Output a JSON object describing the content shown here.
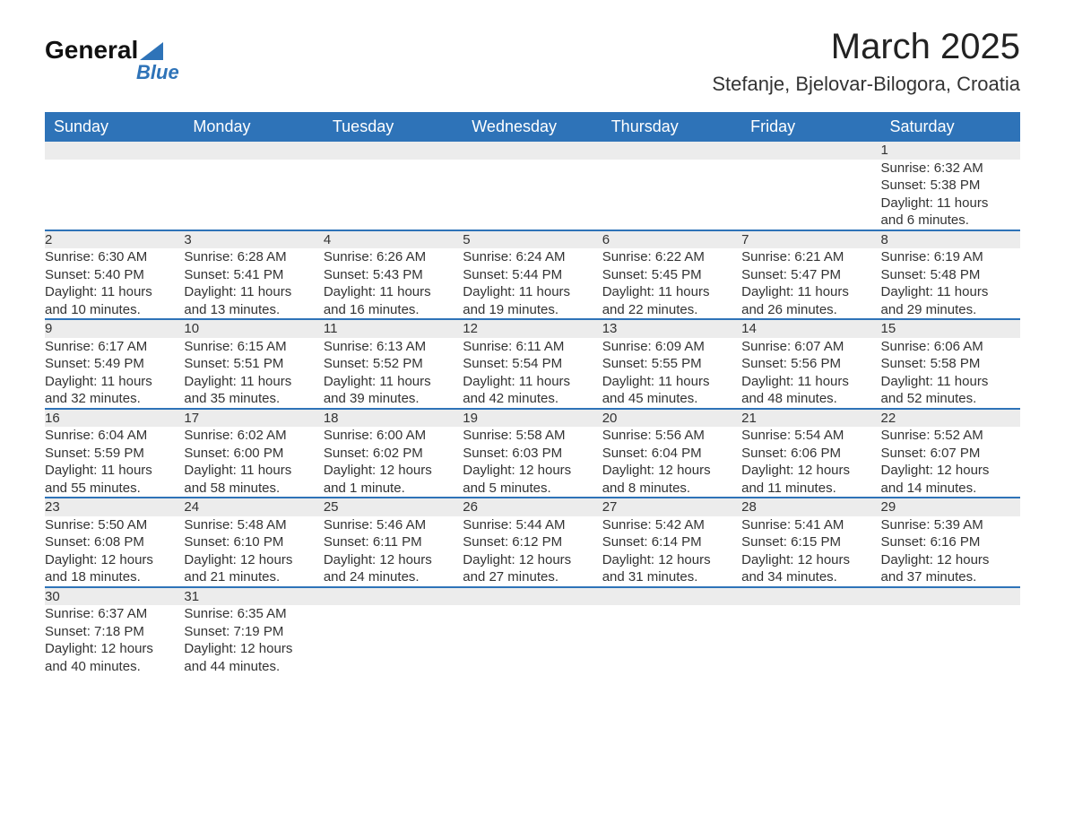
{
  "logo": {
    "word1": "General",
    "word2": "Blue"
  },
  "title": "March 2025",
  "subtitle": "Stefanje, Bjelovar-Bilogora, Croatia",
  "colors": {
    "header_bg": "#2e73b8",
    "header_fg": "#ffffff",
    "daynum_bg": "#ececec",
    "row_divider": "#2e73b8",
    "text": "#333333",
    "background": "#ffffff"
  },
  "fonts": {
    "title_size_pt": 30,
    "subtitle_size_pt": 17,
    "header_size_pt": 14,
    "cell_size_pt": 11
  },
  "headers": [
    "Sunday",
    "Monday",
    "Tuesday",
    "Wednesday",
    "Thursday",
    "Friday",
    "Saturday"
  ],
  "weeks": [
    [
      null,
      null,
      null,
      null,
      null,
      null,
      {
        "n": "1",
        "sr": "Sunrise: 6:32 AM",
        "ss": "Sunset: 5:38 PM",
        "d1": "Daylight: 11 hours",
        "d2": "and 6 minutes."
      }
    ],
    [
      {
        "n": "2",
        "sr": "Sunrise: 6:30 AM",
        "ss": "Sunset: 5:40 PM",
        "d1": "Daylight: 11 hours",
        "d2": "and 10 minutes."
      },
      {
        "n": "3",
        "sr": "Sunrise: 6:28 AM",
        "ss": "Sunset: 5:41 PM",
        "d1": "Daylight: 11 hours",
        "d2": "and 13 minutes."
      },
      {
        "n": "4",
        "sr": "Sunrise: 6:26 AM",
        "ss": "Sunset: 5:43 PM",
        "d1": "Daylight: 11 hours",
        "d2": "and 16 minutes."
      },
      {
        "n": "5",
        "sr": "Sunrise: 6:24 AM",
        "ss": "Sunset: 5:44 PM",
        "d1": "Daylight: 11 hours",
        "d2": "and 19 minutes."
      },
      {
        "n": "6",
        "sr": "Sunrise: 6:22 AM",
        "ss": "Sunset: 5:45 PM",
        "d1": "Daylight: 11 hours",
        "d2": "and 22 minutes."
      },
      {
        "n": "7",
        "sr": "Sunrise: 6:21 AM",
        "ss": "Sunset: 5:47 PM",
        "d1": "Daylight: 11 hours",
        "d2": "and 26 minutes."
      },
      {
        "n": "8",
        "sr": "Sunrise: 6:19 AM",
        "ss": "Sunset: 5:48 PM",
        "d1": "Daylight: 11 hours",
        "d2": "and 29 minutes."
      }
    ],
    [
      {
        "n": "9",
        "sr": "Sunrise: 6:17 AM",
        "ss": "Sunset: 5:49 PM",
        "d1": "Daylight: 11 hours",
        "d2": "and 32 minutes."
      },
      {
        "n": "10",
        "sr": "Sunrise: 6:15 AM",
        "ss": "Sunset: 5:51 PM",
        "d1": "Daylight: 11 hours",
        "d2": "and 35 minutes."
      },
      {
        "n": "11",
        "sr": "Sunrise: 6:13 AM",
        "ss": "Sunset: 5:52 PM",
        "d1": "Daylight: 11 hours",
        "d2": "and 39 minutes."
      },
      {
        "n": "12",
        "sr": "Sunrise: 6:11 AM",
        "ss": "Sunset: 5:54 PM",
        "d1": "Daylight: 11 hours",
        "d2": "and 42 minutes."
      },
      {
        "n": "13",
        "sr": "Sunrise: 6:09 AM",
        "ss": "Sunset: 5:55 PM",
        "d1": "Daylight: 11 hours",
        "d2": "and 45 minutes."
      },
      {
        "n": "14",
        "sr": "Sunrise: 6:07 AM",
        "ss": "Sunset: 5:56 PM",
        "d1": "Daylight: 11 hours",
        "d2": "and 48 minutes."
      },
      {
        "n": "15",
        "sr": "Sunrise: 6:06 AM",
        "ss": "Sunset: 5:58 PM",
        "d1": "Daylight: 11 hours",
        "d2": "and 52 minutes."
      }
    ],
    [
      {
        "n": "16",
        "sr": "Sunrise: 6:04 AM",
        "ss": "Sunset: 5:59 PM",
        "d1": "Daylight: 11 hours",
        "d2": "and 55 minutes."
      },
      {
        "n": "17",
        "sr": "Sunrise: 6:02 AM",
        "ss": "Sunset: 6:00 PM",
        "d1": "Daylight: 11 hours",
        "d2": "and 58 minutes."
      },
      {
        "n": "18",
        "sr": "Sunrise: 6:00 AM",
        "ss": "Sunset: 6:02 PM",
        "d1": "Daylight: 12 hours",
        "d2": "and 1 minute."
      },
      {
        "n": "19",
        "sr": "Sunrise: 5:58 AM",
        "ss": "Sunset: 6:03 PM",
        "d1": "Daylight: 12 hours",
        "d2": "and 5 minutes."
      },
      {
        "n": "20",
        "sr": "Sunrise: 5:56 AM",
        "ss": "Sunset: 6:04 PM",
        "d1": "Daylight: 12 hours",
        "d2": "and 8 minutes."
      },
      {
        "n": "21",
        "sr": "Sunrise: 5:54 AM",
        "ss": "Sunset: 6:06 PM",
        "d1": "Daylight: 12 hours",
        "d2": "and 11 minutes."
      },
      {
        "n": "22",
        "sr": "Sunrise: 5:52 AM",
        "ss": "Sunset: 6:07 PM",
        "d1": "Daylight: 12 hours",
        "d2": "and 14 minutes."
      }
    ],
    [
      {
        "n": "23",
        "sr": "Sunrise: 5:50 AM",
        "ss": "Sunset: 6:08 PM",
        "d1": "Daylight: 12 hours",
        "d2": "and 18 minutes."
      },
      {
        "n": "24",
        "sr": "Sunrise: 5:48 AM",
        "ss": "Sunset: 6:10 PM",
        "d1": "Daylight: 12 hours",
        "d2": "and 21 minutes."
      },
      {
        "n": "25",
        "sr": "Sunrise: 5:46 AM",
        "ss": "Sunset: 6:11 PM",
        "d1": "Daylight: 12 hours",
        "d2": "and 24 minutes."
      },
      {
        "n": "26",
        "sr": "Sunrise: 5:44 AM",
        "ss": "Sunset: 6:12 PM",
        "d1": "Daylight: 12 hours",
        "d2": "and 27 minutes."
      },
      {
        "n": "27",
        "sr": "Sunrise: 5:42 AM",
        "ss": "Sunset: 6:14 PM",
        "d1": "Daylight: 12 hours",
        "d2": "and 31 minutes."
      },
      {
        "n": "28",
        "sr": "Sunrise: 5:41 AM",
        "ss": "Sunset: 6:15 PM",
        "d1": "Daylight: 12 hours",
        "d2": "and 34 minutes."
      },
      {
        "n": "29",
        "sr": "Sunrise: 5:39 AM",
        "ss": "Sunset: 6:16 PM",
        "d1": "Daylight: 12 hours",
        "d2": "and 37 minutes."
      }
    ],
    [
      {
        "n": "30",
        "sr": "Sunrise: 6:37 AM",
        "ss": "Sunset: 7:18 PM",
        "d1": "Daylight: 12 hours",
        "d2": "and 40 minutes."
      },
      {
        "n": "31",
        "sr": "Sunrise: 6:35 AM",
        "ss": "Sunset: 7:19 PM",
        "d1": "Daylight: 12 hours",
        "d2": "and 44 minutes."
      },
      null,
      null,
      null,
      null,
      null
    ]
  ]
}
